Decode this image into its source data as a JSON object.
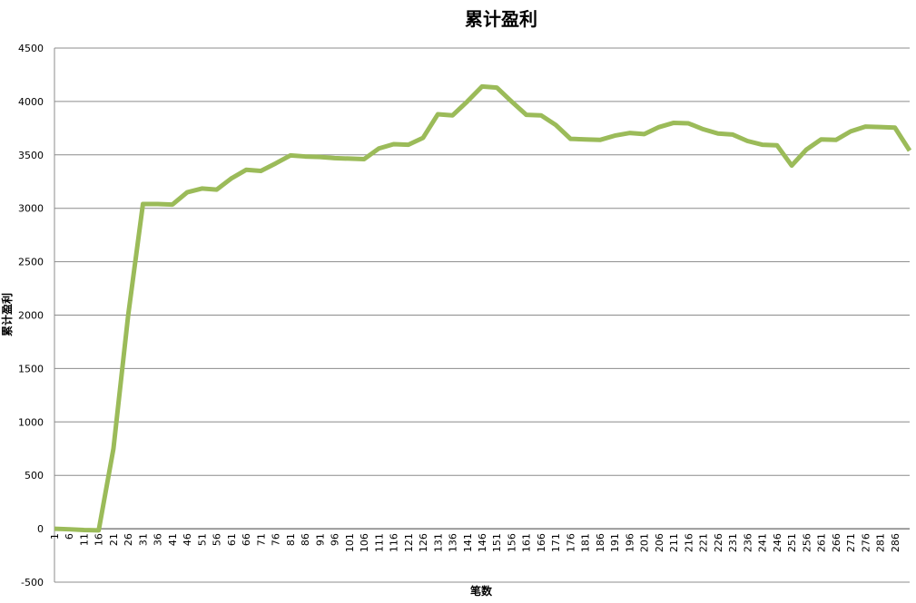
{
  "chart_data": {
    "type": "line",
    "title": "累计盈利",
    "x_label": "笔数",
    "y_label": "累计盈利",
    "categories": [
      "1",
      "6",
      "11",
      "16",
      "21",
      "26",
      "31",
      "36",
      "41",
      "46",
      "51",
      "56",
      "61",
      "66",
      "71",
      "76",
      "81",
      "86",
      "91",
      "96",
      "101",
      "106",
      "111",
      "116",
      "121",
      "126",
      "131",
      "136",
      "141",
      "146",
      "151",
      "156",
      "161",
      "166",
      "171",
      "176",
      "181",
      "186",
      "191",
      "196",
      "201",
      "206",
      "211",
      "216",
      "221",
      "226",
      "231",
      "236",
      "241",
      "246",
      "251",
      "256",
      "261",
      "266",
      "271",
      "276",
      "281",
      "286",
      null
    ],
    "series": [
      {
        "name": "累计盈利",
        "color": "#9bbb59",
        "values": [
          0,
          -5,
          -12,
          -15,
          750,
          2000,
          3040,
          3040,
          3035,
          3150,
          3185,
          3175,
          3280,
          3360,
          3350,
          3420,
          3495,
          3485,
          3480,
          3470,
          3465,
          3460,
          3560,
          3600,
          3595,
          3660,
          3880,
          3870,
          4000,
          4140,
          4130,
          4000,
          3875,
          3870,
          3780,
          3650,
          3645,
          3640,
          3680,
          3705,
          3695,
          3760,
          3800,
          3795,
          3740,
          3700,
          3690,
          3630,
          3595,
          3590,
          3400,
          3550,
          3645,
          3640,
          3720,
          3765,
          3760,
          3755,
          3540
        ]
      }
    ],
    "ylim": [
      -500,
      4500
    ],
    "yticks": [
      -500,
      0,
      500,
      1000,
      1500,
      2000,
      2500,
      3000,
      3500,
      4000,
      4500
    ],
    "grid": true
  }
}
